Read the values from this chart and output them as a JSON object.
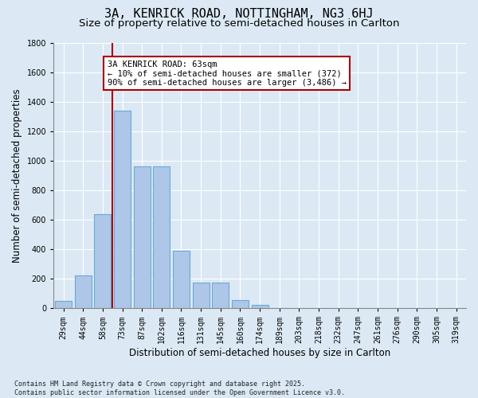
{
  "title_line1": "3A, KENRICK ROAD, NOTTINGHAM, NG3 6HJ",
  "title_line2": "Size of property relative to semi-detached houses in Carlton",
  "xlabel": "Distribution of semi-detached houses by size in Carlton",
  "ylabel": "Number of semi-detached properties",
  "categories": [
    "29sqm",
    "44sqm",
    "58sqm",
    "73sqm",
    "87sqm",
    "102sqm",
    "116sqm",
    "131sqm",
    "145sqm",
    "160sqm",
    "174sqm",
    "189sqm",
    "203sqm",
    "218sqm",
    "232sqm",
    "247sqm",
    "261sqm",
    "276sqm",
    "290sqm",
    "305sqm",
    "319sqm"
  ],
  "values": [
    50,
    220,
    640,
    1340,
    960,
    960,
    390,
    175,
    175,
    55,
    25,
    0,
    0,
    0,
    0,
    0,
    0,
    0,
    0,
    0,
    0
  ],
  "bar_color": "#aec6e8",
  "bar_edge_color": "#6aaad4",
  "background_color": "#dce9f5",
  "grid_color": "#ffffff",
  "vline_x_index": 2,
  "vline_color": "#aa0000",
  "annotation_text": "3A KENRICK ROAD: 63sqm\n← 10% of semi-detached houses are smaller (372)\n90% of semi-detached houses are larger (3,486) →",
  "annotation_box_color": "#ffffff",
  "annotation_box_edge": "#aa0000",
  "ylim": [
    0,
    1800
  ],
  "yticks": [
    0,
    200,
    400,
    600,
    800,
    1000,
    1200,
    1400,
    1600,
    1800
  ],
  "footnote": "Contains HM Land Registry data © Crown copyright and database right 2025.\nContains public sector information licensed under the Open Government Licence v3.0.",
  "title_fontsize": 11,
  "subtitle_fontsize": 9.5,
  "label_fontsize": 8.5,
  "tick_fontsize": 7,
  "annot_fontsize": 7.5,
  "footnote_fontsize": 6
}
